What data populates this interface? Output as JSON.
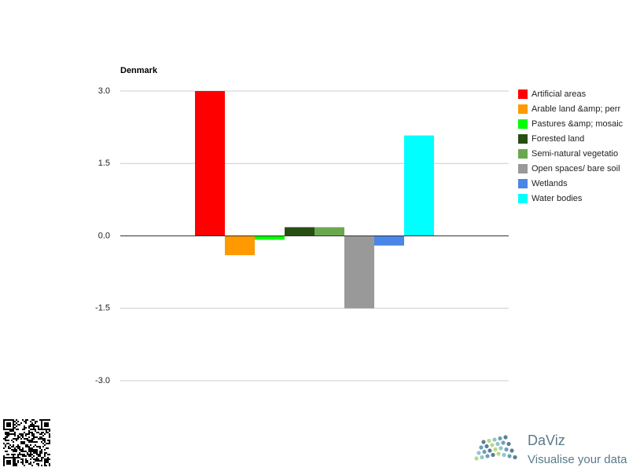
{
  "chart_data": {
    "type": "bar",
    "title": "Denmark",
    "categories": [
      null
    ],
    "series": [
      {
        "name": "Artificial areas",
        "color": "#ff0000",
        "values": [
          3.0
        ]
      },
      {
        "name": "Arable land &amp; perr",
        "color": "#ff9900",
        "values": [
          -0.4
        ]
      },
      {
        "name": "Pastures &amp; mosaic",
        "color": "#00ff00",
        "values": [
          -0.08
        ]
      },
      {
        "name": "Forested land",
        "color": "#274e13",
        "values": [
          0.18
        ]
      },
      {
        "name": "Semi-natural vegetatio",
        "color": "#6aa84f",
        "values": [
          0.18
        ]
      },
      {
        "name": "Open spaces/ bare soil",
        "color": "#999999",
        "values": [
          -1.5
        ]
      },
      {
        "name": "Wetlands",
        "color": "#4a86e8",
        "values": [
          -0.2
        ]
      },
      {
        "name": "Water bodies",
        "color": "#00ffff",
        "values": [
          2.08
        ]
      }
    ],
    "ylim": [
      -3.0,
      3.0
    ],
    "yticks": [
      {
        "value": -3.0,
        "label": "-3.0"
      },
      {
        "value": -1.5,
        "label": "-1.5"
      },
      {
        "value": 0,
        "label": "0.0"
      },
      {
        "value": 1.5,
        "label": "1.5"
      },
      {
        "value": 3.0,
        "label": "3.0"
      }
    ],
    "grid": true,
    "legend": "right"
  },
  "logo": {
    "name": "DaViz",
    "tagline": "Visualise your data"
  }
}
